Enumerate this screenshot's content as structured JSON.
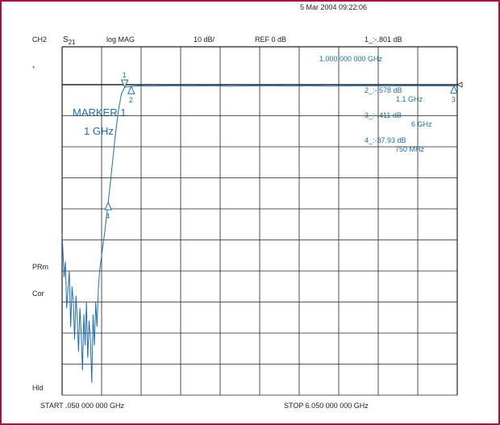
{
  "header": {
    "datetime": "5 Mar 2004  09:22:06",
    "channel": "CH2",
    "param": "S",
    "param_sub": "21",
    "format": "log MAG",
    "scale": "10 dB/",
    "reference": "REF 0 dB",
    "marker1_readout": "1_:-.801  dB",
    "marker1_freq": "1.000 000 000 GHz"
  },
  "left_annotations": {
    "dot": "*",
    "prm": "PRm",
    "cor": "Cor",
    "hld": "Hld"
  },
  "marker_text": {
    "line1": "MARKER 1",
    "line2": "1 GHz"
  },
  "marker_list": [
    {
      "readout": "2_:-.578  dB",
      "freq": "1.1 GHz"
    },
    {
      "readout": "3_:-.411  dB",
      "freq": "6 GHz"
    },
    {
      "readout": "4_:-37.93  dB",
      "freq": "750 MHz"
    }
  ],
  "footer": {
    "start": "START  .050 000 000 GHz",
    "stop": "STOP  6.050 000 000 GHz"
  },
  "colors": {
    "trace": "#1f6fb0",
    "grid": "#222222",
    "frame": "#a01446"
  },
  "chart_data": {
    "type": "line",
    "x_unit": "GHz",
    "y_unit": "dB",
    "xlim": [
      0.05,
      6.05
    ],
    "ylim": [
      -100,
      0
    ],
    "y_reference": 0,
    "y_per_division": 10,
    "grid": true,
    "series": [
      {
        "x": [
          0.05,
          0.08,
          0.1,
          0.12,
          0.14,
          0.16,
          0.18,
          0.2,
          0.22,
          0.24,
          0.26,
          0.28,
          0.3,
          0.32,
          0.34,
          0.36,
          0.38,
          0.4,
          0.42,
          0.44,
          0.46,
          0.48,
          0.5,
          0.52,
          0.54,
          0.56,
          0.58,
          0.6,
          0.62,
          0.65,
          0.7,
          0.75,
          0.8,
          0.85,
          0.9,
          0.95,
          1.0,
          1.05,
          1.1,
          1.2,
          1.4,
          1.7,
          2.0,
          2.3,
          2.6,
          2.9,
          3.2,
          3.5,
          3.8,
          4.1,
          4.4,
          4.7,
          5.0,
          5.3,
          5.6,
          5.9,
          6.0,
          6.05
        ],
        "y": [
          -48,
          -62,
          -57,
          -72,
          -66,
          -60,
          -78,
          -65,
          -70,
          -82,
          -68,
          -75,
          -86,
          -72,
          -80,
          -92,
          -74,
          -84,
          -70,
          -88,
          -76,
          -82,
          -96,
          -74,
          -84,
          -70,
          -78,
          -66,
          -60,
          -55,
          -47,
          -37.93,
          -28,
          -18,
          -9,
          -3,
          -0.801,
          -0.7,
          -0.578,
          -0.4,
          -0.5,
          -0.3,
          -0.45,
          -0.35,
          -0.5,
          -0.4,
          -0.3,
          -0.45,
          -0.35,
          -0.5,
          -0.4,
          -0.3,
          -0.45,
          -0.35,
          -0.4,
          -0.4,
          -0.411,
          -0.45
        ]
      }
    ],
    "markers": [
      {
        "id": "1",
        "freq_ghz": 1.0,
        "value_db": -0.801,
        "style": "down"
      },
      {
        "id": "2",
        "freq_ghz": 1.1,
        "value_db": -0.578,
        "style": "up"
      },
      {
        "id": "3",
        "freq_ghz": 6.0,
        "value_db": -0.411,
        "style": "up"
      },
      {
        "id": "4",
        "freq_ghz": 0.75,
        "value_db": -37.93,
        "style": "up"
      }
    ]
  }
}
